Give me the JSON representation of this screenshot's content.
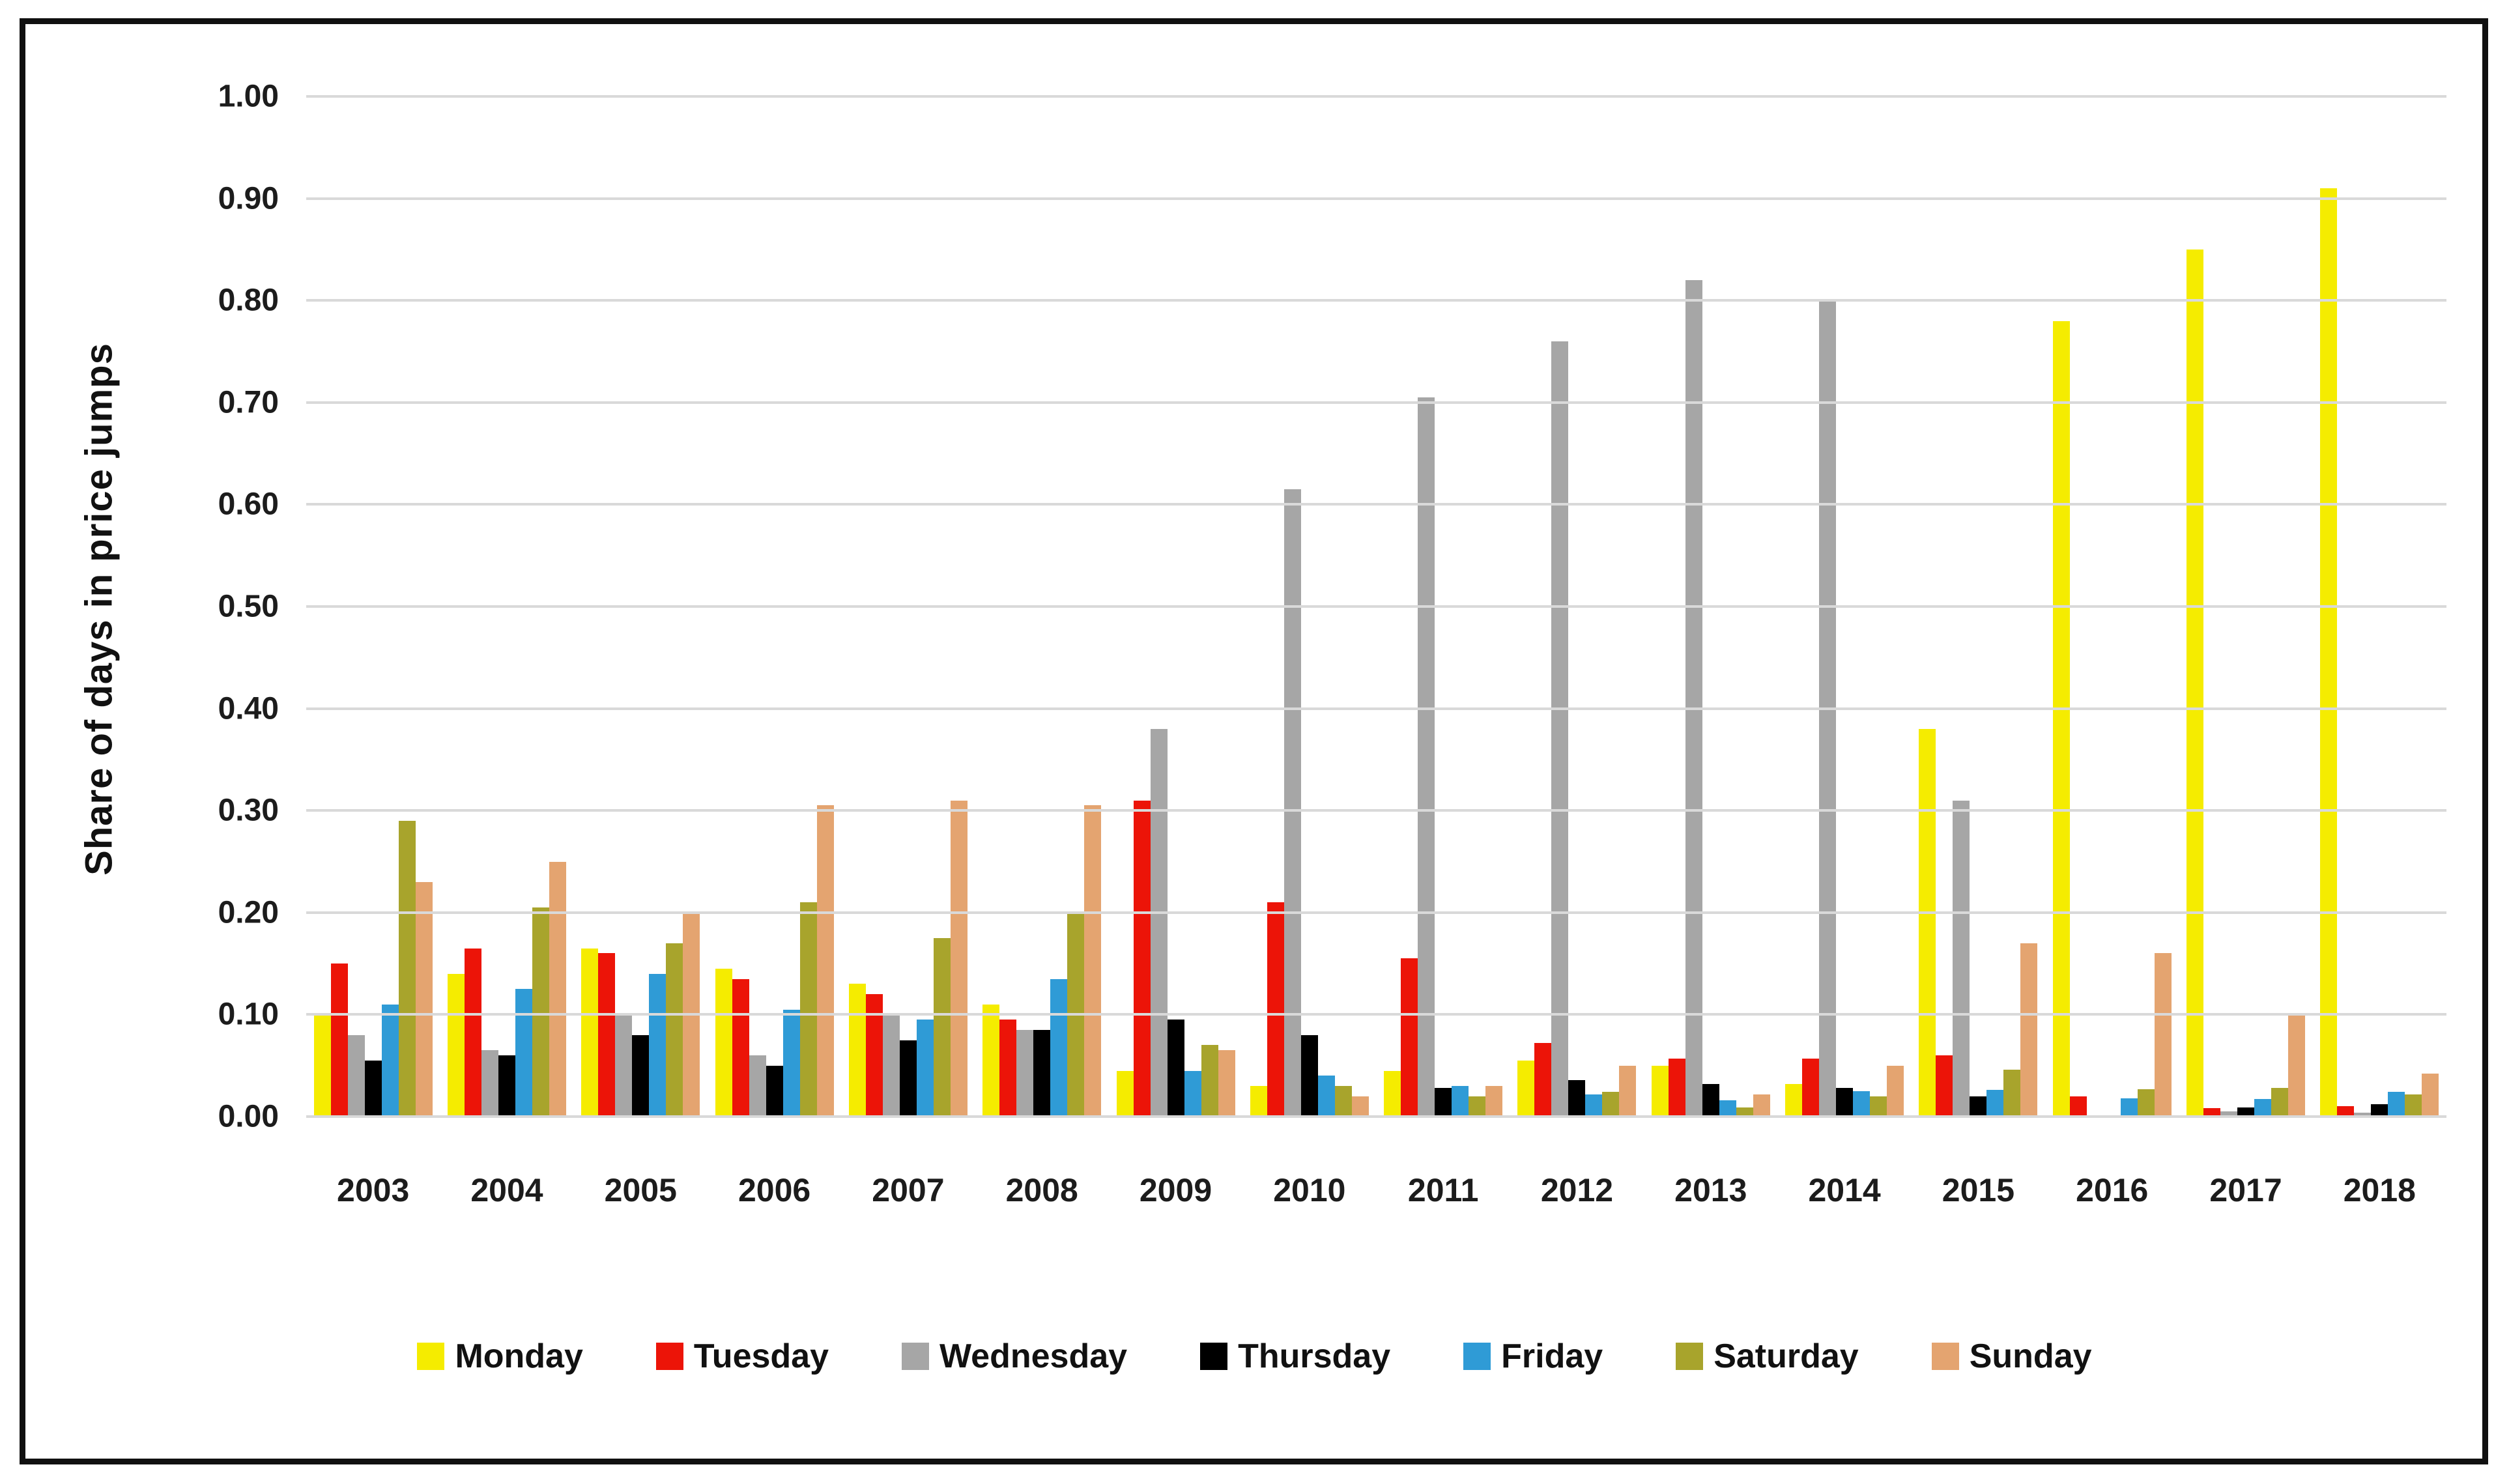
{
  "figure": {
    "background": "#ffffff",
    "border_color": "#101010",
    "gridline_color": "#d9d9d9"
  },
  "chart_data": {
    "type": "bar",
    "title": "",
    "xlabel": "",
    "ylabel": "Share of days in price jumps",
    "ylim": [
      0,
      1.0
    ],
    "ytick_labels": [
      "0.00",
      "0.10",
      "0.20",
      "0.30",
      "0.40",
      "0.50",
      "0.60",
      "0.70",
      "0.80",
      "0.90",
      "1.00"
    ],
    "grid": "horizontal",
    "legend_position": "bottom",
    "categories": [
      "2003",
      "2004",
      "2005",
      "2006",
      "2007",
      "2008",
      "2009",
      "2010",
      "2011",
      "2012",
      "2013",
      "2014",
      "2015",
      "2016",
      "2017",
      "2018"
    ],
    "series": [
      {
        "name": "Monday",
        "color": "#f5ec00",
        "values": [
          0.1,
          0.14,
          0.165,
          0.145,
          0.13,
          0.11,
          0.045,
          0.03,
          0.045,
          0.055,
          0.05,
          0.032,
          0.38,
          0.78,
          0.85,
          0.91
        ]
      },
      {
        "name": "Tuesday",
        "color": "#ec1408",
        "values": [
          0.15,
          0.165,
          0.16,
          0.135,
          0.12,
          0.095,
          0.31,
          0.21,
          0.155,
          0.072,
          0.057,
          0.057,
          0.06,
          0.02,
          0.008,
          0.01
        ]
      },
      {
        "name": "Wednesday",
        "color": "#a6a6a6",
        "values": [
          0.08,
          0.065,
          0.1,
          0.06,
          0.1,
          0.085,
          0.38,
          0.615,
          0.705,
          0.76,
          0.82,
          0.8,
          0.31,
          0.0,
          0.005,
          0.004
        ]
      },
      {
        "name": "Thursday",
        "color": "#000000",
        "values": [
          0.055,
          0.06,
          0.08,
          0.05,
          0.075,
          0.085,
          0.095,
          0.08,
          0.028,
          0.036,
          0.032,
          0.028,
          0.02,
          0.0,
          0.009,
          0.012
        ]
      },
      {
        "name": "Friday",
        "color": "#2f9bd6",
        "values": [
          0.11,
          0.125,
          0.14,
          0.105,
          0.095,
          0.135,
          0.045,
          0.04,
          0.03,
          0.022,
          0.016,
          0.025,
          0.026,
          0.018,
          0.017,
          0.024
        ]
      },
      {
        "name": "Saturday",
        "color": "#a8a42c",
        "values": [
          0.29,
          0.205,
          0.17,
          0.21,
          0.175,
          0.2,
          0.07,
          0.03,
          0.02,
          0.024,
          0.009,
          0.02,
          0.046,
          0.027,
          0.028,
          0.022
        ]
      },
      {
        "name": "Sunday",
        "color": "#e4a470",
        "values": [
          0.23,
          0.25,
          0.2,
          0.305,
          0.31,
          0.305,
          0.065,
          0.02,
          0.03,
          0.05,
          0.022,
          0.05,
          0.17,
          0.16,
          0.1,
          0.042
        ]
      }
    ]
  }
}
